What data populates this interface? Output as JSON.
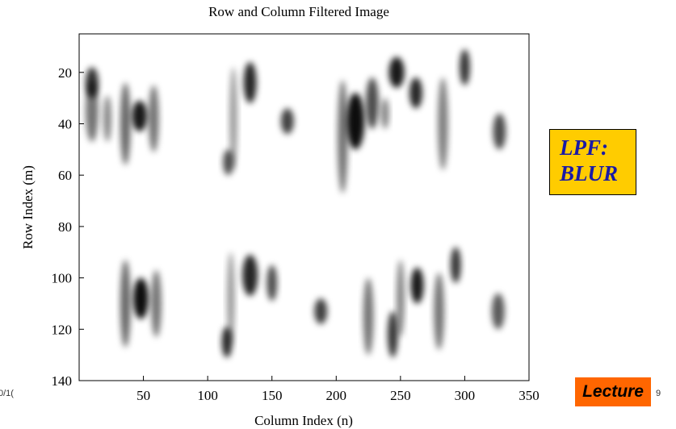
{
  "chart_data": {
    "type": "heatmap",
    "title": "Row and Column Filtered Image",
    "xlabel": "Column Index  (n)",
    "ylabel": "Row Index (m)",
    "xlim": [
      0,
      350
    ],
    "ylim": [
      5,
      140
    ],
    "x_ticks": [
      50,
      100,
      150,
      200,
      250,
      300,
      350
    ],
    "y_ticks": [
      20,
      40,
      60,
      80,
      100,
      120,
      140
    ],
    "colormap": "gray-inverted",
    "blobs": [
      {
        "cx": 10,
        "cy": 24,
        "rx": 5,
        "ry": 6,
        "v": 0.8
      },
      {
        "cx": 10,
        "cy": 35,
        "rx": 5,
        "ry": 12,
        "v": 0.55
      },
      {
        "cx": 22,
        "cy": 38,
        "rx": 3,
        "ry": 9,
        "v": 0.5
      },
      {
        "cx": 36,
        "cy": 40,
        "rx": 4,
        "ry": 16,
        "v": 0.6
      },
      {
        "cx": 47,
        "cy": 37,
        "rx": 6,
        "ry": 6,
        "v": 0.9
      },
      {
        "cx": 58,
        "cy": 38,
        "rx": 4,
        "ry": 13,
        "v": 0.55
      },
      {
        "cx": 116,
        "cy": 55,
        "rx": 4,
        "ry": 5,
        "v": 0.7
      },
      {
        "cx": 120,
        "cy": 38,
        "rx": 3,
        "ry": 20,
        "v": 0.4
      },
      {
        "cx": 133,
        "cy": 24,
        "rx": 5,
        "ry": 8,
        "v": 0.85
      },
      {
        "cx": 162,
        "cy": 39,
        "rx": 5,
        "ry": 5,
        "v": 0.75
      },
      {
        "cx": 205,
        "cy": 45,
        "rx": 4,
        "ry": 22,
        "v": 0.55
      },
      {
        "cx": 215,
        "cy": 39,
        "rx": 7,
        "ry": 11,
        "v": 0.95
      },
      {
        "cx": 228,
        "cy": 32,
        "rx": 5,
        "ry": 10,
        "v": 0.7
      },
      {
        "cx": 238,
        "cy": 36,
        "rx": 3,
        "ry": 6,
        "v": 0.5
      },
      {
        "cx": 247,
        "cy": 20,
        "rx": 6,
        "ry": 6,
        "v": 0.9
      },
      {
        "cx": 262,
        "cy": 28,
        "rx": 5,
        "ry": 6,
        "v": 0.85
      },
      {
        "cx": 283,
        "cy": 40,
        "rx": 4,
        "ry": 18,
        "v": 0.5
      },
      {
        "cx": 300,
        "cy": 18,
        "rx": 4,
        "ry": 7,
        "v": 0.8
      },
      {
        "cx": 327,
        "cy": 43,
        "rx": 5,
        "ry": 7,
        "v": 0.7
      },
      {
        "cx": 36,
        "cy": 110,
        "rx": 4,
        "ry": 17,
        "v": 0.6
      },
      {
        "cx": 48,
        "cy": 108,
        "rx": 6,
        "ry": 8,
        "v": 0.95
      },
      {
        "cx": 60,
        "cy": 110,
        "rx": 4,
        "ry": 13,
        "v": 0.55
      },
      {
        "cx": 115,
        "cy": 125,
        "rx": 4,
        "ry": 6,
        "v": 0.85
      },
      {
        "cx": 118,
        "cy": 108,
        "rx": 3,
        "ry": 18,
        "v": 0.4
      },
      {
        "cx": 133,
        "cy": 99,
        "rx": 6,
        "ry": 8,
        "v": 0.85
      },
      {
        "cx": 150,
        "cy": 102,
        "rx": 4,
        "ry": 7,
        "v": 0.7
      },
      {
        "cx": 188,
        "cy": 113,
        "rx": 5,
        "ry": 5,
        "v": 0.75
      },
      {
        "cx": 225,
        "cy": 115,
        "rx": 4,
        "ry": 15,
        "v": 0.55
      },
      {
        "cx": 244,
        "cy": 122,
        "rx": 4,
        "ry": 9,
        "v": 0.8
      },
      {
        "cx": 250,
        "cy": 108,
        "rx": 3,
        "ry": 15,
        "v": 0.5
      },
      {
        "cx": 263,
        "cy": 103,
        "rx": 5,
        "ry": 7,
        "v": 0.9
      },
      {
        "cx": 280,
        "cy": 113,
        "rx": 4,
        "ry": 15,
        "v": 0.55
      },
      {
        "cx": 293,
        "cy": 95,
        "rx": 4,
        "ry": 7,
        "v": 0.8
      },
      {
        "cx": 326,
        "cy": 113,
        "rx": 5,
        "ry": 7,
        "v": 0.65
      }
    ]
  },
  "annotations": {
    "lpf_line1": "LPF:",
    "lpf_line2": "BLUR",
    "lecture": "Lecture",
    "footer_left": "0/1(",
    "footer_right": "9"
  },
  "colors": {
    "lpf_background": "#ffcc00",
    "lpf_text": "#1a1aa6",
    "lecture_background": "#ff6600"
  }
}
